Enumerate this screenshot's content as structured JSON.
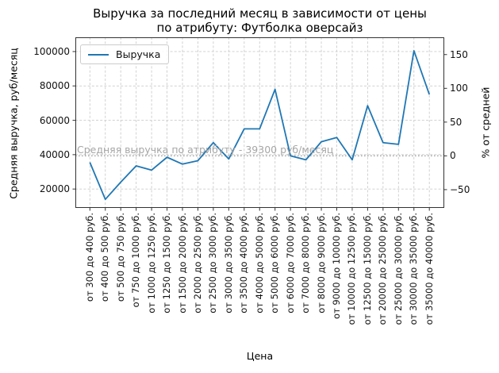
{
  "title": {
    "line1": "Выручка за последний месяц в зависимости от цены",
    "line2": "по атрибуту: Футболка оверсайз"
  },
  "legend": {
    "label": "Выручка"
  },
  "chart_data": {
    "type": "line",
    "title": "Выручка за последний месяц в зависимости от цены по атрибуту: Футболка оверсайз",
    "x_label": "Цена",
    "y_left": {
      "label": "Средняя выручка, руб/месяц",
      "ticks": [
        20000,
        40000,
        60000,
        80000,
        100000
      ],
      "lim": [
        9000,
        108300
      ]
    },
    "y_right": {
      "label": "% от средней",
      "ticks": [
        -50,
        0,
        50,
        100,
        150
      ],
      "tick_labels": [
        "−50",
        "0",
        "50",
        "100",
        "150"
      ],
      "unit": "%"
    },
    "avg_line": {
      "label": "Средняя выручка по атрибуту - 39300 руб/месяц",
      "value": 39300
    },
    "grid": true,
    "legend_position": "upper left",
    "line_color": "#1f77b4",
    "grid_color": "#cccccc",
    "avg_color": "#ababab",
    "categories": [
      "от 300 до 400 руб.",
      "от 400 до 500 руб.",
      "от 500 до 750 руб.",
      "от 750 до 1000 руб.",
      "от 1000 до 1250 руб.",
      "от 1250 до 1500 руб.",
      "от 1500 до 2000 руб.",
      "от 2000 до 2500 руб.",
      "от 2500 до 3000 руб.",
      "от 3000 до 3500 руб.",
      "от 3500 до 4000 руб.",
      "от 4000 до 5000 руб.",
      "от 5000 до 6000 руб.",
      "от 6000 до 7000 руб.",
      "от 7000 до 8000 руб.",
      "от 8000 до 9000 руб.",
      "от 9000 до 10000 руб.",
      "от 10000 до 12500 руб.",
      "от 12500 до 15000 руб.",
      "от 20000 до 25000 руб.",
      "от 25000 до 30000 руб.",
      "от 30000 до 35000 руб.",
      "от 35000 до 40000 руб."
    ],
    "series": [
      {
        "name": "Выручка",
        "values": [
          35500,
          14000,
          24000,
          33500,
          31000,
          38500,
          34500,
          36500,
          47000,
          37500,
          55000,
          55000,
          78000,
          39300,
          37000,
          47500,
          50000,
          37000,
          68500,
          47000,
          46000,
          100500,
          75000
        ]
      }
    ]
  }
}
